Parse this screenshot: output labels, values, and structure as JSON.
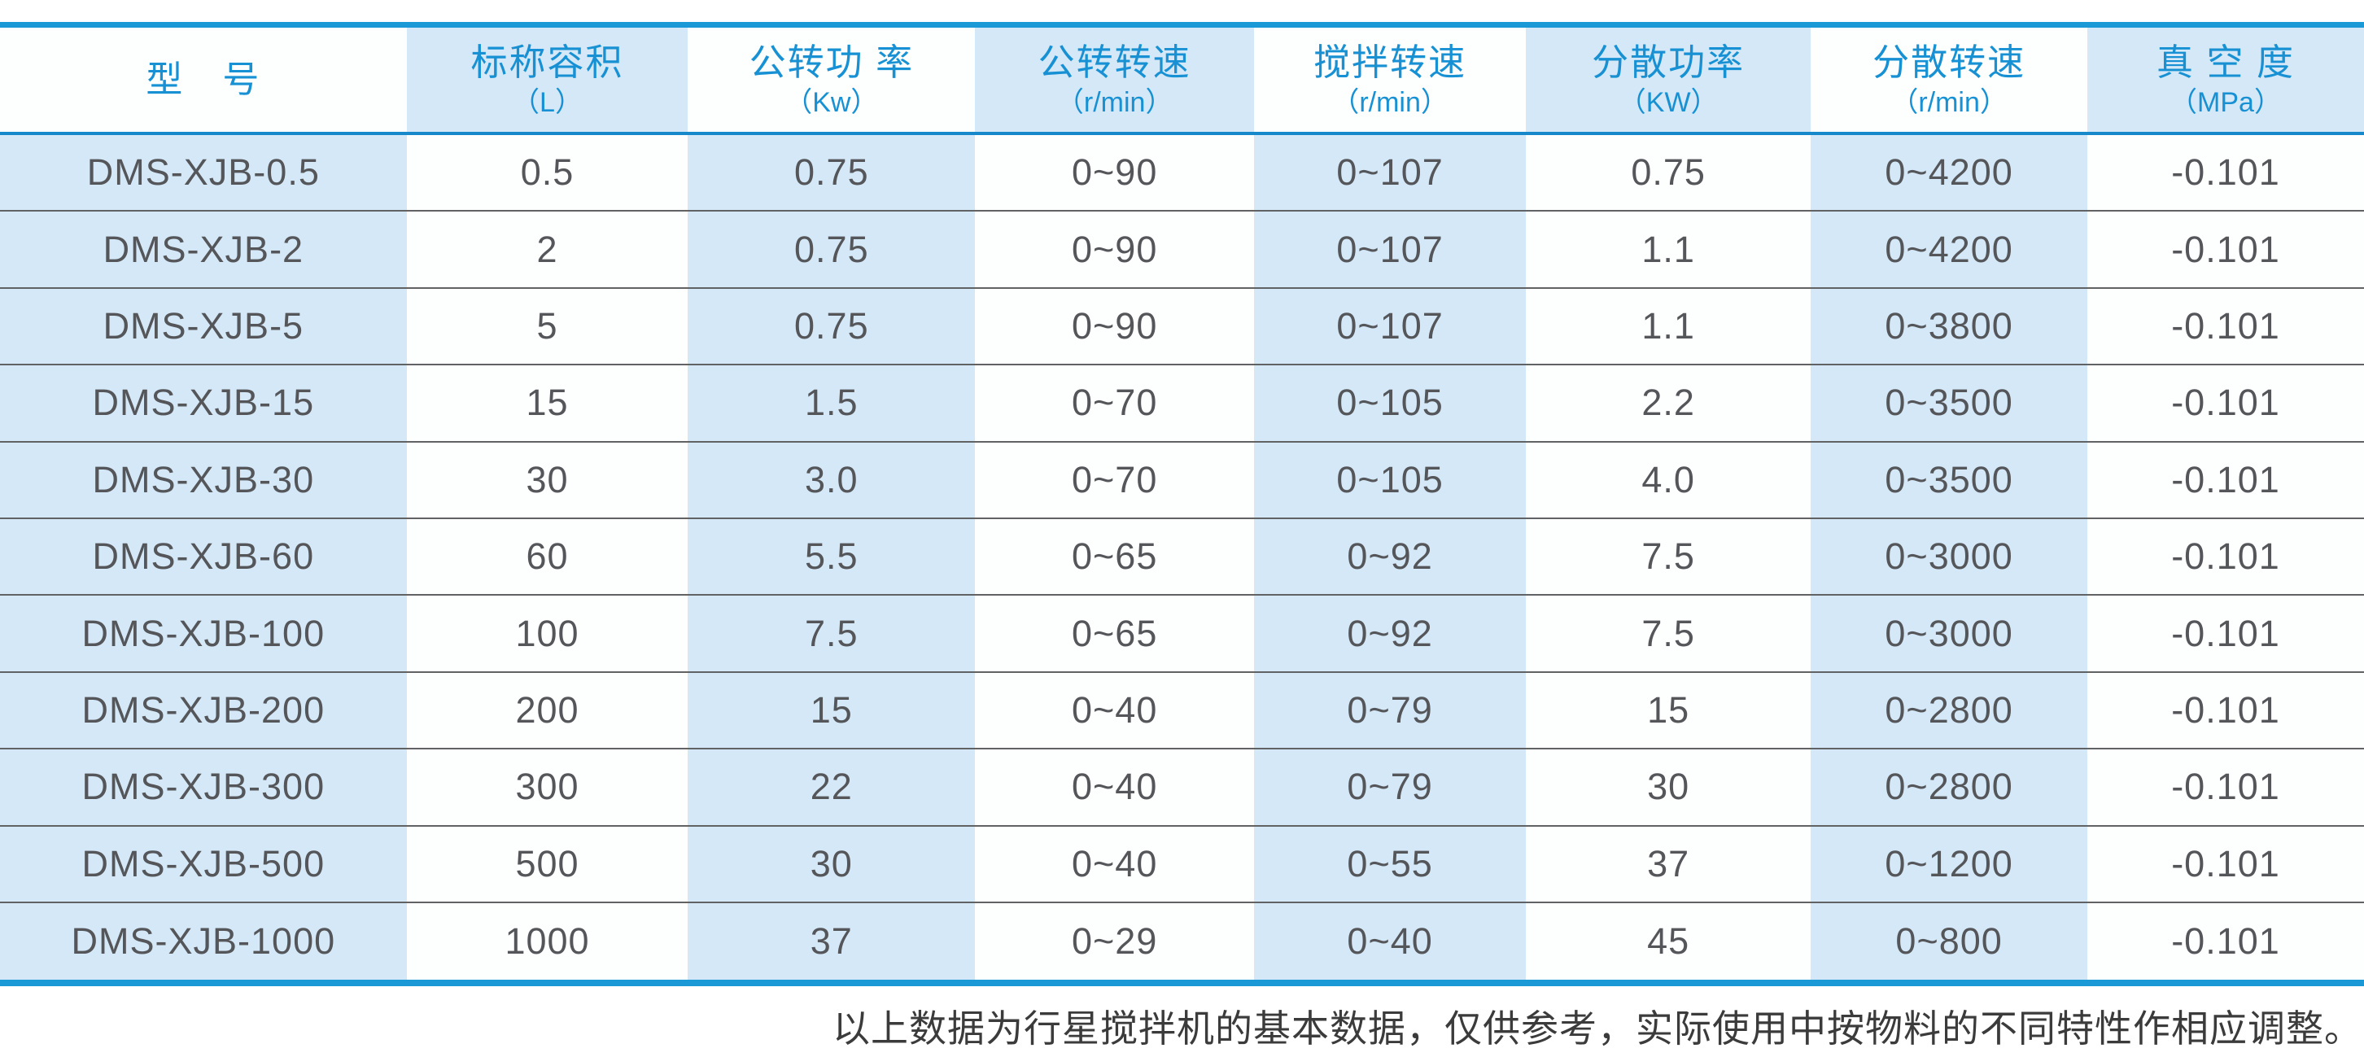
{
  "colors": {
    "accent_blue_text": "#1791D3",
    "border_blue": "#1B98D6",
    "header_separator_blue": "#1789CB",
    "column_tint_blue": "#D5E8F7",
    "row_separator_gray": "#606264",
    "body_text_gray": "#54565A",
    "footer_text_gray": "#3B3B3B"
  },
  "table": {
    "columns": [
      {
        "label": "型　号",
        "sub": ""
      },
      {
        "label": "标称容积",
        "sub": "（L）"
      },
      {
        "label": "公转功 率",
        "sub": "（Kw）"
      },
      {
        "label": "公转转速",
        "sub": "（r/min）"
      },
      {
        "label": "搅拌转速",
        "sub": "（r/min）"
      },
      {
        "label": "分散功率",
        "sub": "（KW）"
      },
      {
        "label": "分散转速",
        "sub": "（r/min）"
      },
      {
        "label": "真 空 度",
        "sub": "（MPa）"
      }
    ],
    "rows": [
      [
        "DMS-XJB-0.5",
        "0.5",
        "0.75",
        "0~90",
        "0~107",
        "0.75",
        "0~4200",
        "-0.101"
      ],
      [
        "DMS-XJB-2",
        "2",
        "0.75",
        "0~90",
        "0~107",
        "1.1",
        "0~4200",
        "-0.101"
      ],
      [
        "DMS-XJB-5",
        "5",
        "0.75",
        "0~90",
        "0~107",
        "1.1",
        "0~3800",
        "-0.101"
      ],
      [
        "DMS-XJB-15",
        "15",
        "1.5",
        "0~70",
        "0~105",
        "2.2",
        "0~3500",
        "-0.101"
      ],
      [
        "DMS-XJB-30",
        "30",
        "3.0",
        "0~70",
        "0~105",
        "4.0",
        "0~3500",
        "-0.101"
      ],
      [
        "DMS-XJB-60",
        "60",
        "5.5",
        "0~65",
        "0~92",
        "7.5",
        "0~3000",
        "-0.101"
      ],
      [
        "DMS-XJB-100",
        "100",
        "7.5",
        "0~65",
        "0~92",
        "7.5",
        "0~3000",
        "-0.101"
      ],
      [
        "DMS-XJB-200",
        "200",
        "15",
        "0~40",
        "0~79",
        "15",
        "0~2800",
        "-0.101"
      ],
      [
        "DMS-XJB-300",
        "300",
        "22",
        "0~40",
        "0~79",
        "30",
        "0~2800",
        "-0.101"
      ],
      [
        "DMS-XJB-500",
        "500",
        "30",
        "0~40",
        "0~55",
        "37",
        "0~1200",
        "-0.101"
      ],
      [
        "DMS-XJB-1000",
        "1000",
        "37",
        "0~29",
        "0~40",
        "45",
        "0~800",
        "-0.101"
      ]
    ]
  },
  "footer": {
    "note": "以上数据为行星搅拌机的基本数据，仅供参考，实际使用中按物料的不同特性作相应调整。"
  }
}
